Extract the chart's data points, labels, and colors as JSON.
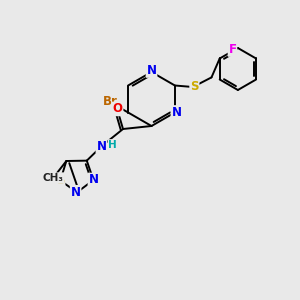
{
  "bg_color": "#e9e9e9",
  "bond_color": "#000000",
  "atom_colors": {
    "N": "#0000ee",
    "O": "#ee0000",
    "S": "#ccaa00",
    "Br": "#bb6600",
    "F": "#ee00ee",
    "H": "#00aaaa"
  },
  "font_size": 8.5,
  "lw": 1.4
}
